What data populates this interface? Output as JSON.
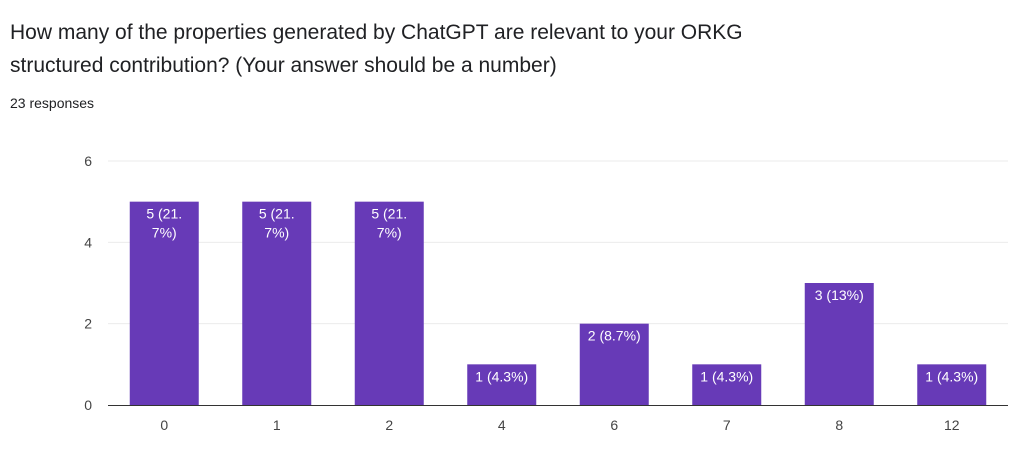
{
  "question": {
    "title": "How many of the properties generated by ChatGPT are relevant to your ORKG structured contribution? (Your answer should be a number)",
    "responses": "23 responses"
  },
  "colors": {
    "bar": "#673ab7",
    "grid": "#ebebeb",
    "axis": "#333333",
    "tick_text": "#444444",
    "label_text": "#ffffff"
  },
  "chart_data": {
    "type": "bar",
    "categories": [
      "0",
      "1",
      "2",
      "4",
      "6",
      "7",
      "8",
      "12"
    ],
    "values": [
      5,
      5,
      5,
      1,
      2,
      1,
      3,
      1
    ],
    "data_labels": [
      [
        "5 (21.",
        "7%)"
      ],
      [
        "5 (21.",
        "7%)"
      ],
      [
        "5 (21.",
        "7%)"
      ],
      [
        "1 (4.3%)"
      ],
      [
        "2 (8.7%)"
      ],
      [
        "1 (4.3%)"
      ],
      [
        "3 (13%)"
      ],
      [
        "1 (4.3%)"
      ]
    ],
    "yticks": [
      "0",
      "2",
      "4",
      "6"
    ],
    "ylim": [
      0,
      6
    ],
    "grid": true
  }
}
